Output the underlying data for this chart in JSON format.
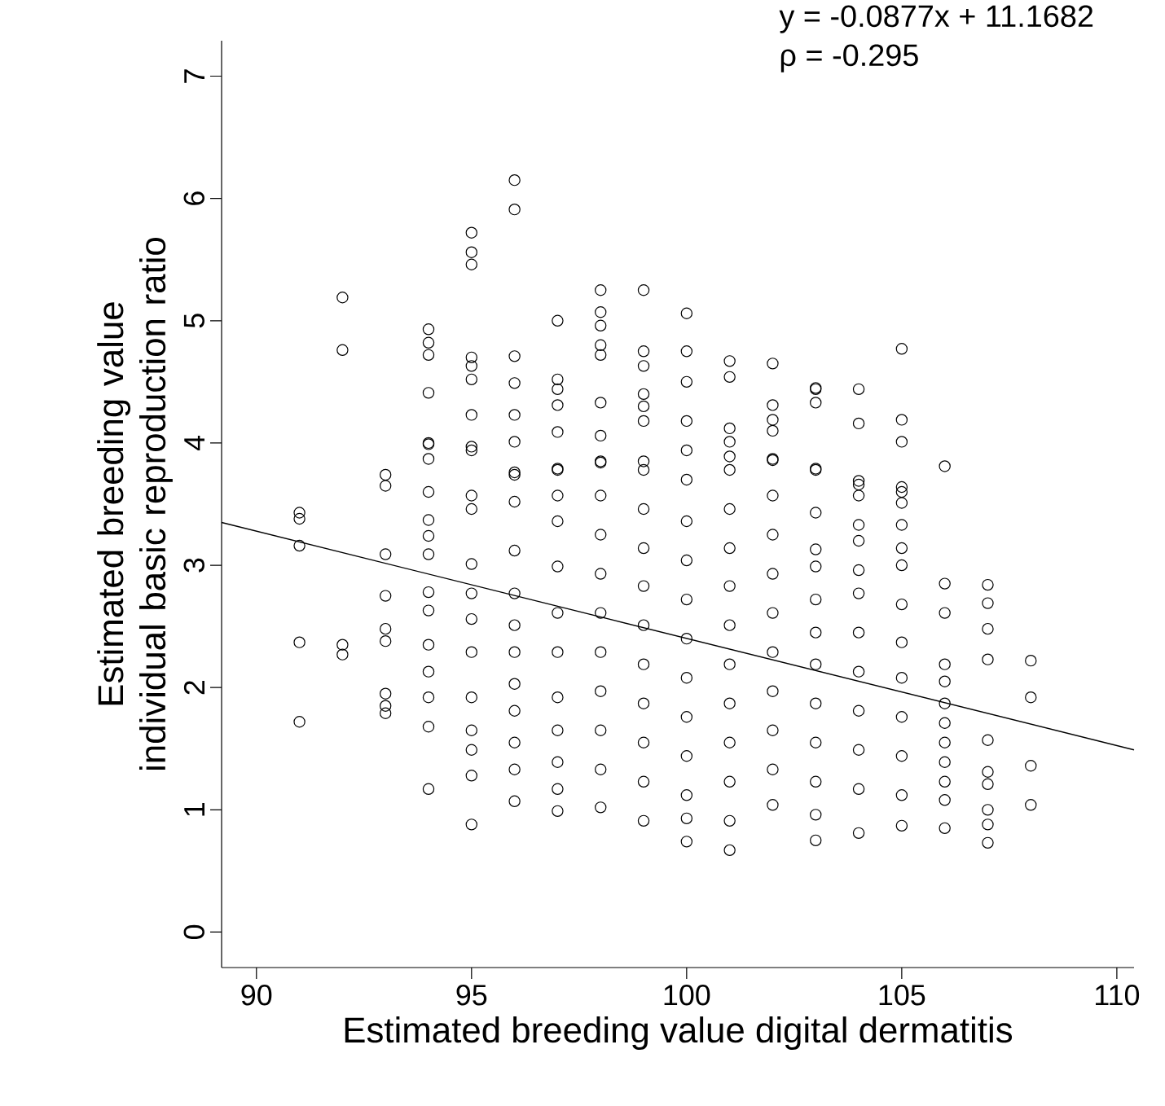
{
  "chart_data": {
    "type": "scatter",
    "xlabel": "Estimated breeding value digital dermatitis",
    "ylabel": "Estimated breeding value individual basic reproduction ratio",
    "annotations": [
      "y = -0.0877x + 11.1682",
      "ρ = -0.295"
    ],
    "xlim": [
      89.19,
      110.4
    ],
    "ylim": [
      -0.29,
      7.29
    ],
    "xticks": [
      90,
      95,
      100,
      105,
      110
    ],
    "yticks": [
      0,
      1,
      2,
      3,
      4,
      5,
      6,
      7
    ],
    "series": [
      {
        "color": "#000000",
        "marker": "circle",
        "x": [
          91,
          91,
          91,
          91,
          91,
          92,
          92,
          92,
          92,
          93,
          93,
          93,
          93,
          93,
          93,
          93,
          93,
          93,
          94,
          94,
          94,
          94,
          94,
          94,
          94,
          94,
          94,
          94,
          94,
          94,
          94,
          94,
          94,
          94,
          94,
          94,
          95,
          95,
          95,
          95,
          95,
          95,
          95,
          95,
          95,
          95,
          95,
          95,
          95,
          95,
          95,
          95,
          95,
          95,
          95,
          95,
          96,
          96,
          96,
          96,
          96,
          96,
          96,
          96,
          96,
          96,
          96,
          96,
          96,
          96,
          96,
          96,
          96,
          96,
          97,
          97,
          97,
          97,
          97,
          97,
          97,
          97,
          97,
          97,
          97,
          97,
          97,
          97,
          97,
          97,
          97,
          98,
          98,
          98,
          98,
          98,
          98,
          98,
          98,
          98,
          98,
          98,
          98,
          98,
          98,
          98,
          98,
          98,
          98,
          99,
          99,
          99,
          99,
          99,
          99,
          99,
          99,
          99,
          99,
          99,
          99,
          99,
          99,
          99,
          99,
          99,
          100,
          100,
          100,
          100,
          100,
          100,
          100,
          100,
          100,
          100,
          100,
          100,
          100,
          100,
          100,
          100,
          101,
          101,
          101,
          101,
          101,
          101,
          101,
          101,
          101,
          101,
          101,
          101,
          101,
          101,
          101,
          101,
          102,
          102,
          102,
          102,
          102,
          102,
          102,
          102,
          102,
          102,
          102,
          102,
          102,
          102,
          102,
          103,
          103,
          103,
          103,
          103,
          103,
          103,
          103,
          103,
          103,
          103,
          103,
          103,
          103,
          103,
          103,
          104,
          104,
          104,
          104,
          104,
          104,
          104,
          104,
          104,
          104,
          104,
          104,
          104,
          104,
          104,
          105,
          105,
          105,
          105,
          105,
          105,
          105,
          105,
          105,
          105,
          105,
          105,
          105,
          105,
          105,
          105,
          106,
          106,
          106,
          106,
          106,
          106,
          106,
          106,
          106,
          106,
          106,
          106,
          107,
          107,
          107,
          107,
          107,
          107,
          107,
          107,
          107,
          107,
          108,
          108,
          108,
          108
        ],
        "values": [
          3.43,
          3.38,
          3.16,
          2.37,
          1.72,
          5.19,
          4.76,
          2.35,
          2.27,
          3.74,
          3.65,
          3.09,
          2.75,
          2.48,
          2.38,
          1.95,
          1.85,
          1.79,
          4.93,
          4.82,
          4.72,
          4.41,
          4.0,
          3.87,
          3.6,
          3.37,
          3.24,
          3.09,
          2.78,
          2.63,
          2.35,
          2.13,
          1.92,
          1.68,
          1.17,
          3.99,
          5.72,
          5.56,
          5.46,
          4.7,
          4.63,
          4.52,
          4.23,
          3.97,
          3.57,
          3.46,
          3.01,
          2.77,
          2.56,
          2.29,
          1.92,
          1.65,
          1.49,
          1.28,
          0.88,
          3.94,
          6.15,
          5.91,
          4.71,
          4.49,
          4.23,
          4.01,
          3.76,
          3.52,
          3.12,
          2.77,
          2.51,
          2.29,
          2.03,
          1.81,
          1.55,
          1.33,
          1.07,
          3.74,
          5.0,
          4.52,
          4.44,
          4.31,
          4.09,
          3.78,
          3.57,
          3.36,
          2.99,
          2.61,
          2.29,
          1.92,
          1.65,
          1.39,
          1.17,
          0.99,
          3.79,
          5.25,
          5.07,
          4.96,
          4.8,
          4.72,
          4.33,
          4.06,
          3.84,
          3.57,
          3.25,
          2.93,
          2.61,
          2.29,
          1.97,
          1.65,
          1.33,
          1.02,
          3.85,
          5.25,
          4.75,
          4.63,
          4.4,
          4.3,
          4.18,
          3.78,
          3.46,
          3.14,
          2.83,
          2.51,
          2.19,
          1.87,
          1.55,
          1.23,
          0.91,
          3.85,
          5.06,
          4.75,
          4.5,
          4.18,
          3.94,
          3.7,
          3.36,
          3.04,
          2.72,
          2.4,
          2.08,
          1.76,
          1.44,
          1.12,
          0.93,
          0.74,
          4.67,
          4.54,
          4.12,
          4.01,
          3.89,
          3.78,
          3.46,
          3.14,
          2.83,
          2.51,
          2.19,
          1.87,
          1.55,
          1.23,
          0.91,
          0.67,
          4.65,
          4.31,
          4.19,
          4.1,
          3.86,
          3.57,
          3.25,
          2.93,
          2.61,
          2.29,
          1.97,
          1.65,
          1.33,
          1.04,
          3.87,
          4.45,
          4.44,
          4.33,
          3.78,
          3.43,
          3.13,
          2.99,
          2.72,
          2.45,
          2.19,
          1.87,
          1.55,
          1.23,
          0.96,
          0.75,
          3.79,
          4.44,
          4.16,
          3.69,
          3.57,
          3.33,
          3.2,
          2.96,
          2.77,
          2.45,
          2.13,
          1.81,
          1.49,
          1.17,
          0.81,
          3.66,
          4.77,
          4.19,
          4.01,
          3.64,
          3.51,
          3.33,
          3.14,
          3.0,
          2.68,
          2.37,
          2.08,
          1.76,
          1.44,
          1.12,
          0.87,
          3.6,
          3.81,
          2.85,
          2.61,
          2.19,
          2.05,
          1.87,
          1.71,
          1.55,
          1.39,
          1.23,
          1.08,
          0.85,
          2.84,
          2.69,
          2.48,
          2.23,
          1.57,
          1.31,
          1.21,
          1.0,
          0.88,
          0.73,
          2.22,
          1.92,
          1.36,
          1.04
        ]
      },
      {
        "type": "line",
        "color": "#000000",
        "x": [
          89.19,
          110.4
        ],
        "values": [
          3.35,
          1.49
        ]
      }
    ]
  }
}
